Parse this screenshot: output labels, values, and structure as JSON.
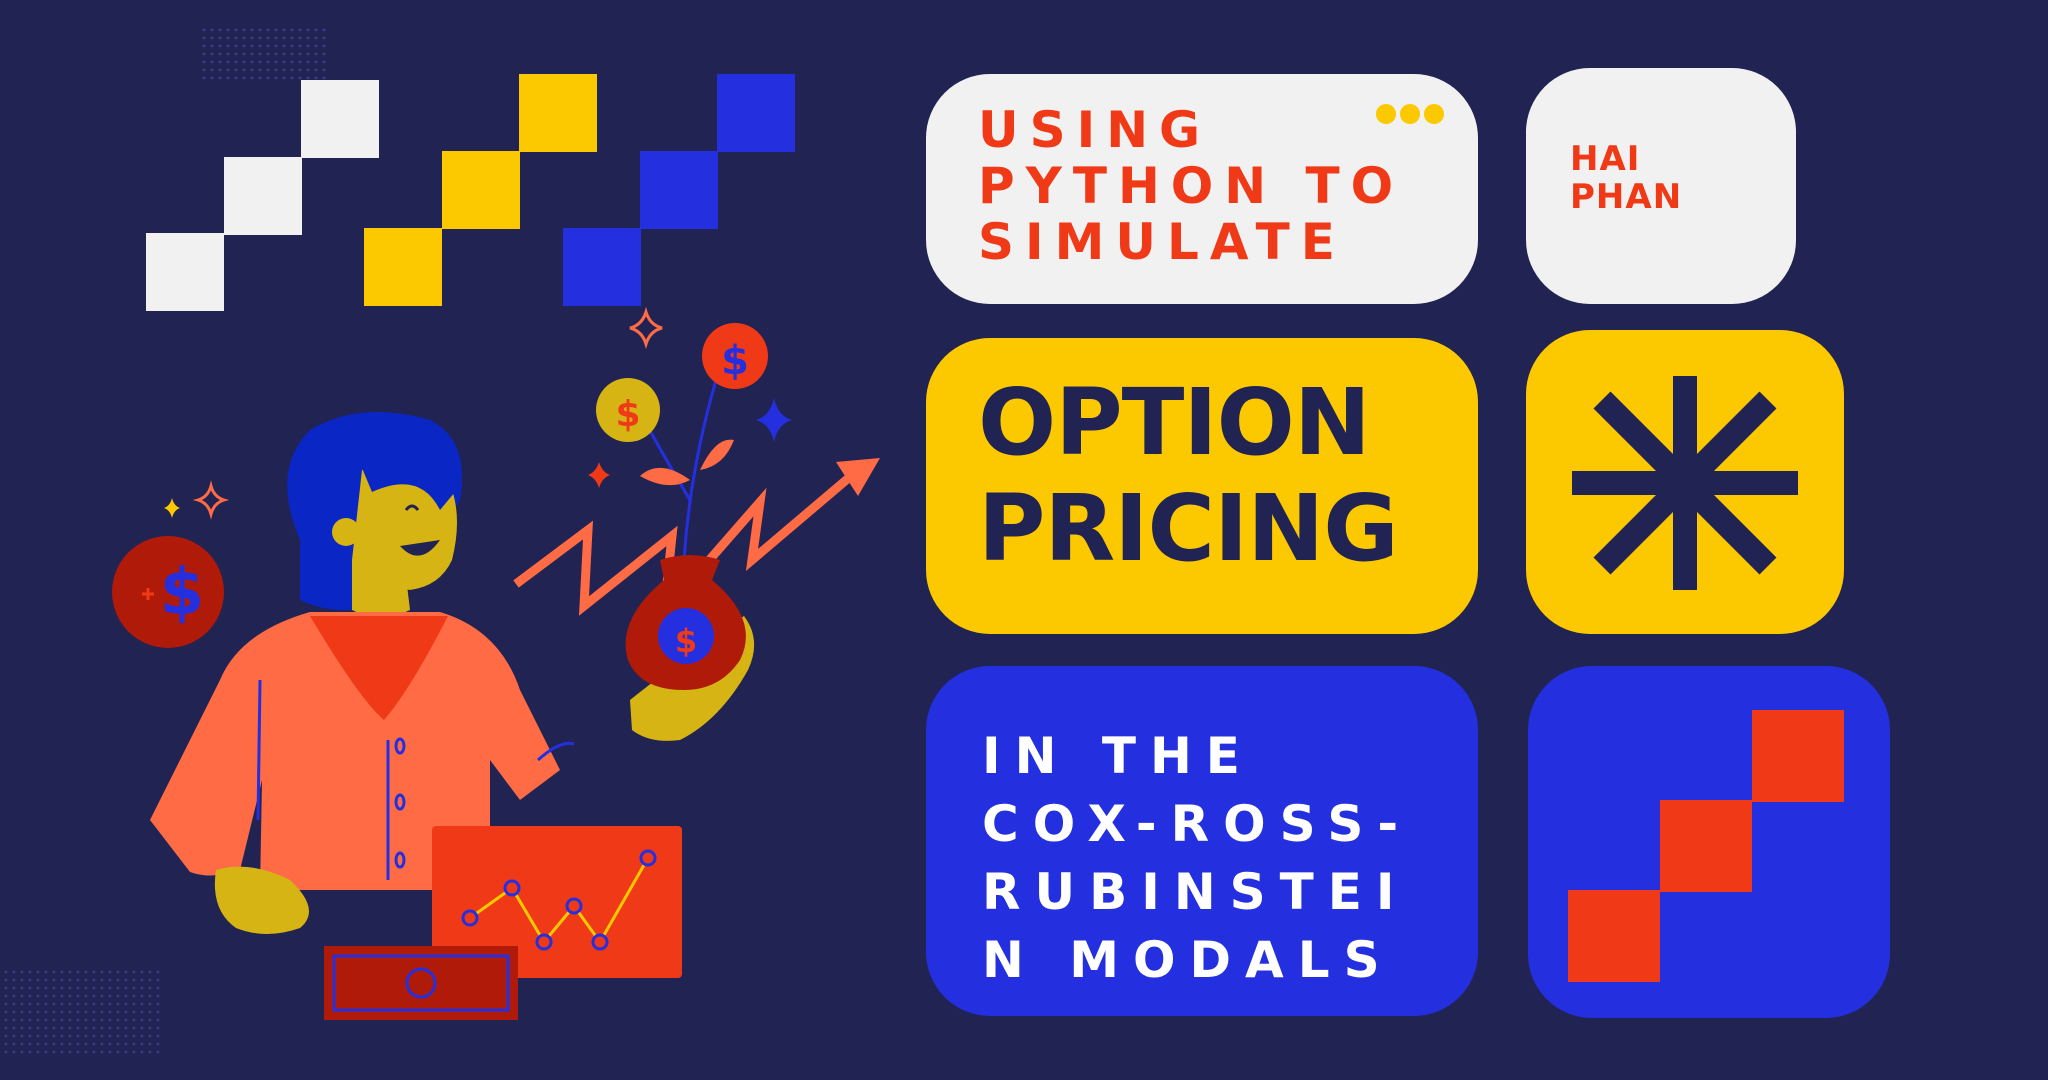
{
  "colors": {
    "background": "#212353",
    "light": "#f1f1f1",
    "yellow": "#fcc800",
    "blue": "#2430e0",
    "red": "#f03a17",
    "orange": "#ff6b45",
    "navy": "#212353",
    "darkred": "#b01a08",
    "mustard": "#d6b414"
  },
  "header": {
    "subtitle_lines": "USING\nPYTHON TO\nSIMULATE",
    "author_lines": "HAI\nPHAN"
  },
  "main": {
    "title_lines": "OPTION\nPRICING"
  },
  "footer": {
    "model_lines": "IN THE\nCOX-ROSS-\nRUBINSTEI\nN MODALS"
  },
  "icons": {
    "ellipsis": "three-dots-icon",
    "asterisk": "asterisk-icon",
    "steps": "stair-steps-icon",
    "coin_symbol": "$"
  }
}
